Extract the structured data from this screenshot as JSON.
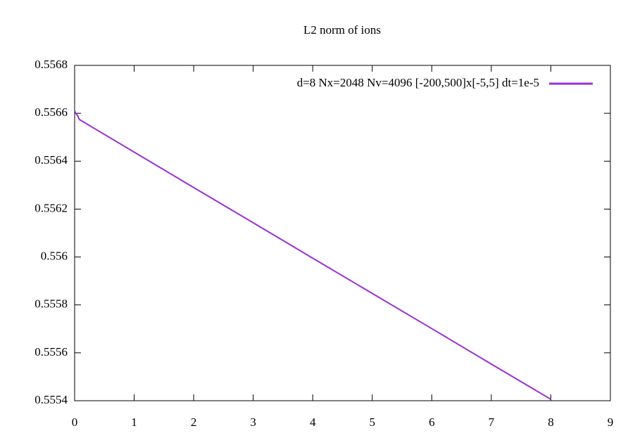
{
  "chart_data": {
    "type": "line",
    "title": "L2 norm of ions",
    "x": [
      0,
      0.02,
      0.05,
      0.08,
      1,
      2,
      3,
      4,
      5,
      6,
      7,
      8
    ],
    "series": [
      {
        "name": "d=8 Nx=2048 Nv=4096 [-200,500]x[-5,5] dt=1e-5",
        "color": "#9b30d3",
        "values": [
          0.55661,
          0.5566,
          0.55659,
          0.556574,
          0.556438,
          0.55629,
          0.556143,
          0.555995,
          0.555848,
          0.555701,
          0.555553,
          0.555406
        ]
      }
    ],
    "xlim": [
      0,
      9
    ],
    "xticks": [
      0,
      1,
      2,
      3,
      4,
      5,
      6,
      7,
      8,
      9
    ],
    "ylim": [
      0.5554,
      0.5568
    ],
    "yticks": [
      0.5554,
      0.5556,
      0.5558,
      0.556,
      0.5562,
      0.5564,
      0.5566,
      0.5568
    ],
    "legend": "top-right",
    "grid": false
  }
}
